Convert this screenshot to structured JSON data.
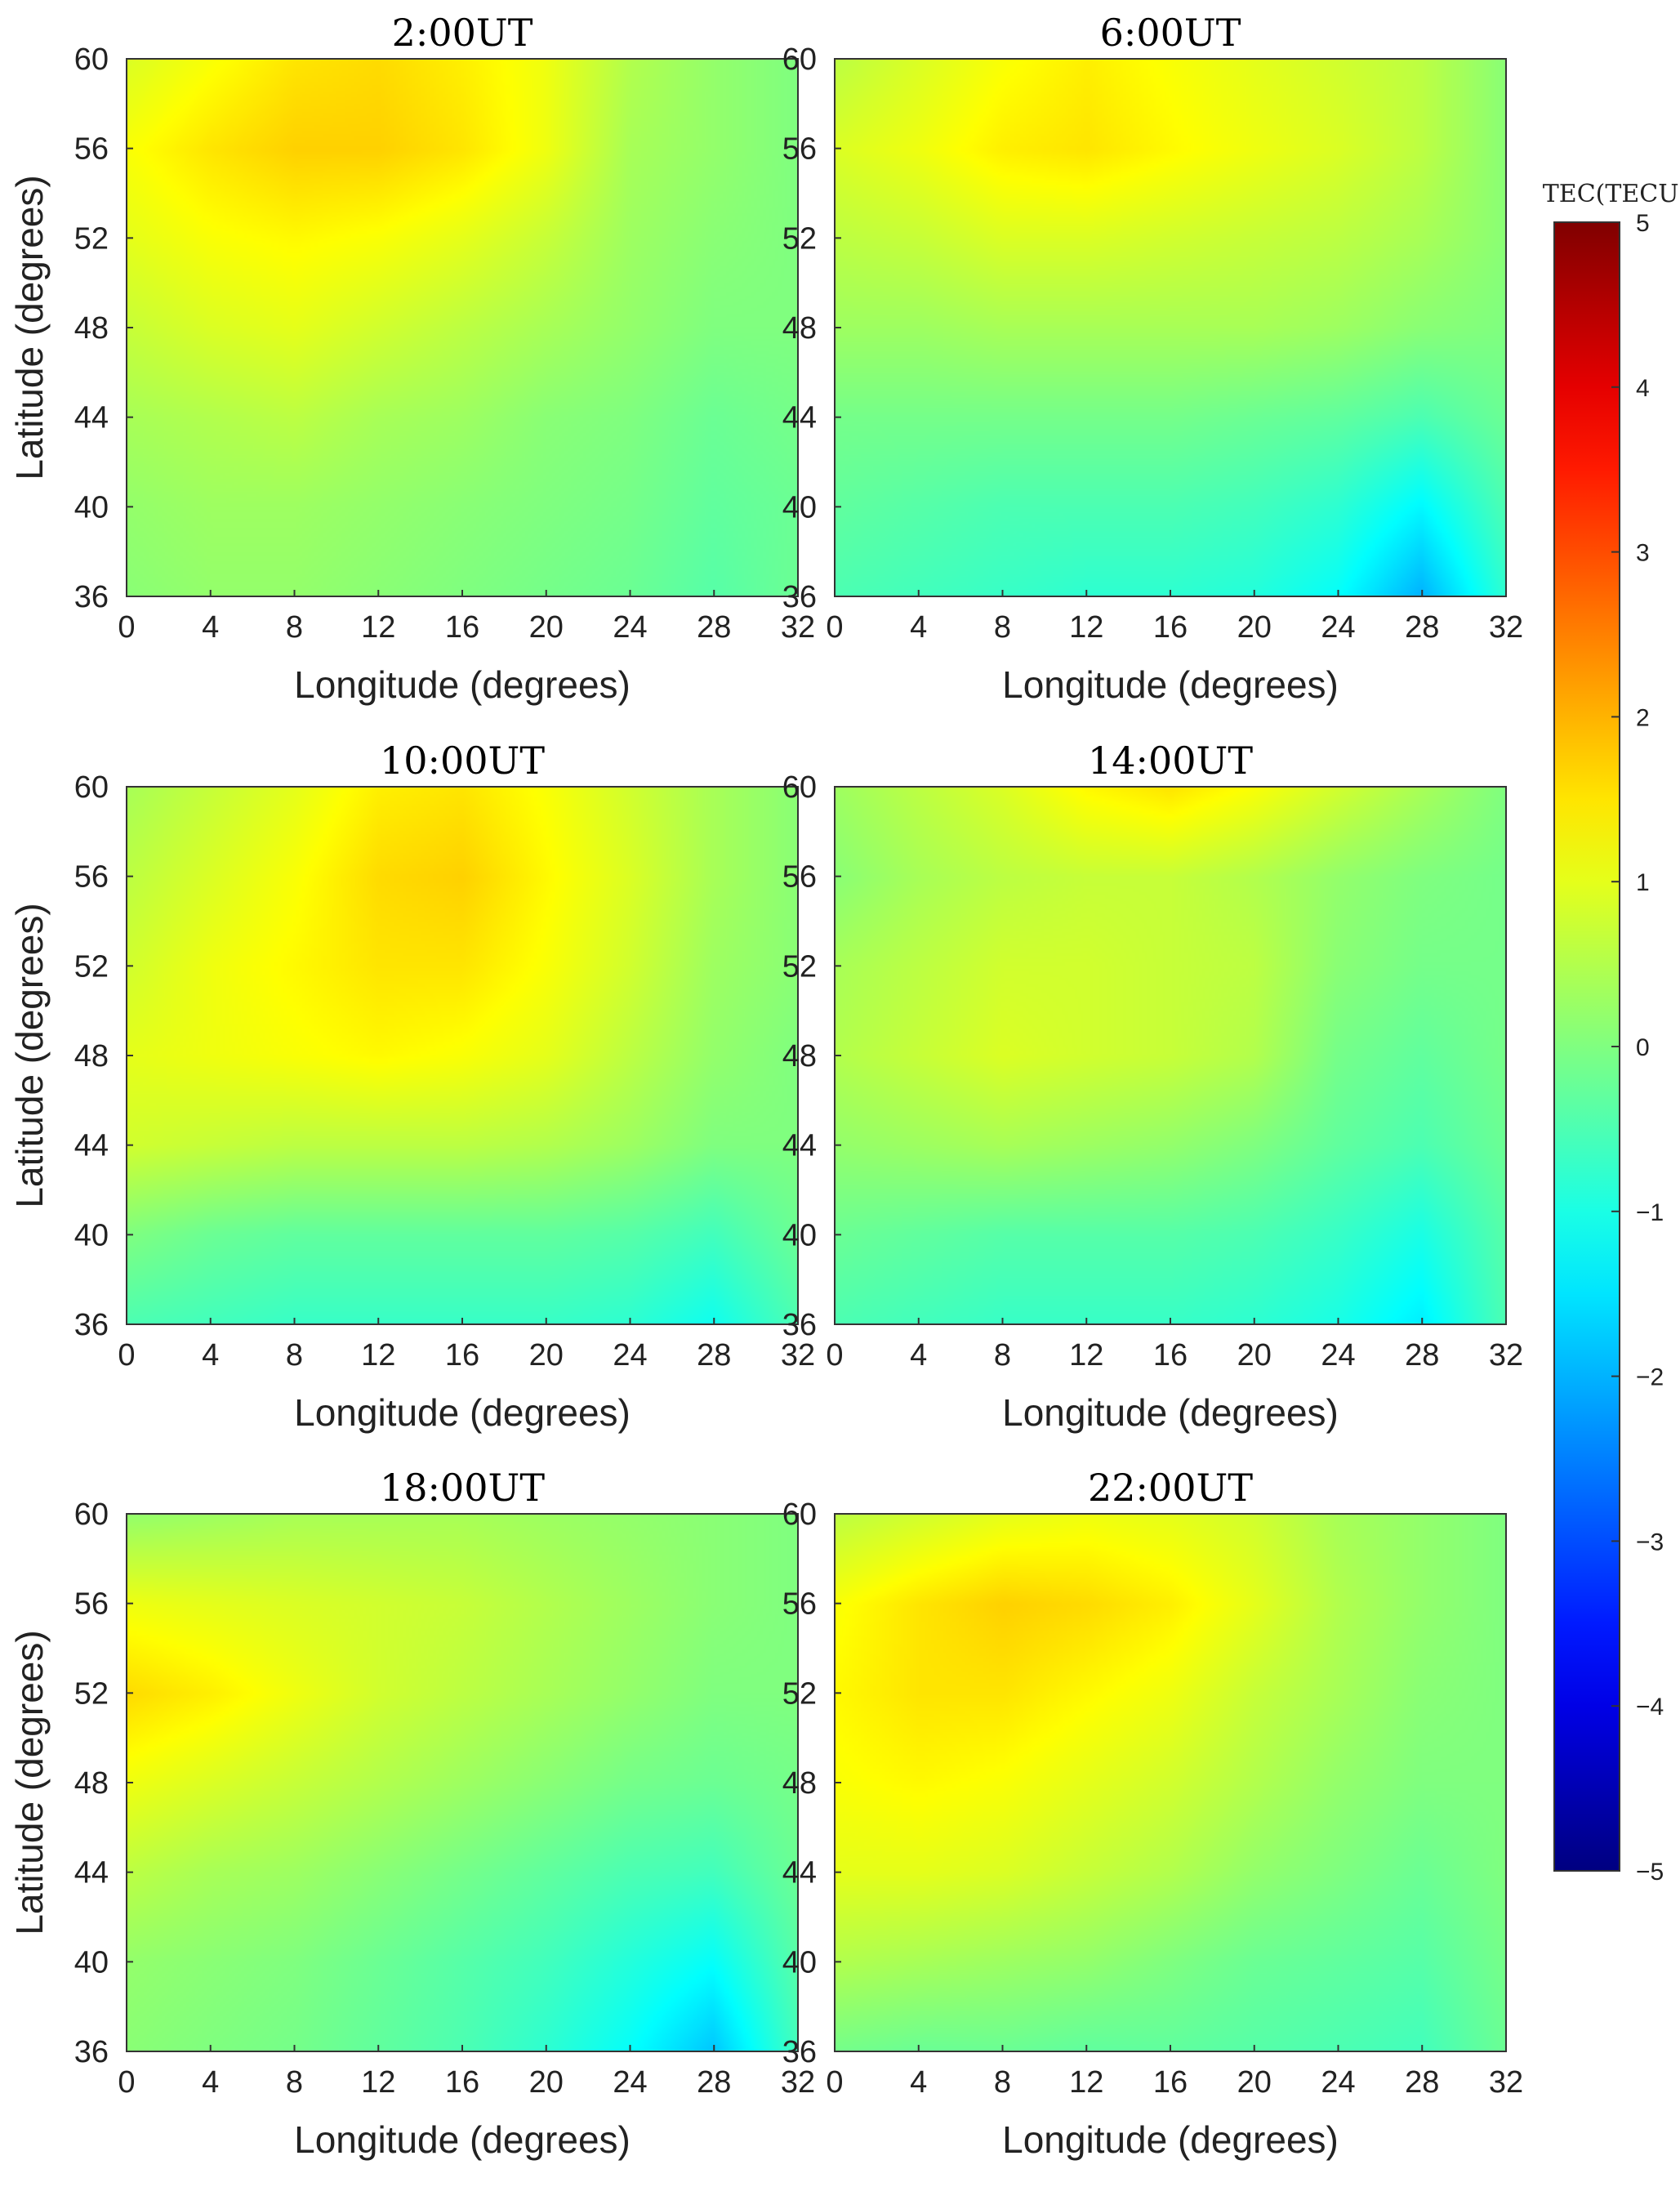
{
  "chart_data": {
    "type": "heatmap",
    "colorbar": {
      "title": "TEC(TECU)",
      "range": [
        -5,
        5
      ],
      "ticks": [
        "5",
        "4",
        "3",
        "2",
        "1",
        "0",
        "−1",
        "−2",
        "−3",
        "−4",
        "−5"
      ],
      "colormap": "jet"
    },
    "xlabel": "Longitude (degrees)",
    "ylabel": "Latitude (degrees)",
    "xlim": [
      0,
      32
    ],
    "ylim": [
      36,
      60
    ],
    "xticks": [
      "0",
      "4",
      "8",
      "12",
      "16",
      "20",
      "24",
      "28",
      "32"
    ],
    "yticks": [
      "36",
      "40",
      "44",
      "48",
      "52",
      "56",
      "60"
    ],
    "panels": [
      {
        "title": "2:00UT",
        "grid": [
          [
            0.1,
            0.2,
            0.2,
            0.1,
            0.0,
            -0.1,
            -0.2,
            -0.4,
            -0.2
          ],
          [
            0.2,
            0.3,
            0.3,
            0.2,
            0.1,
            0.0,
            -0.1,
            -0.3,
            -0.2
          ],
          [
            0.4,
            0.5,
            0.6,
            0.4,
            0.3,
            0.1,
            0.0,
            -0.2,
            -0.1
          ],
          [
            0.7,
            0.9,
            1.0,
            0.8,
            0.6,
            0.4,
            0.2,
            0.0,
            0.0
          ],
          [
            1.0,
            1.2,
            1.3,
            1.2,
            1.0,
            0.7,
            0.3,
            0.1,
            0.0
          ],
          [
            1.2,
            1.5,
            1.7,
            1.7,
            1.5,
            1.1,
            0.4,
            0.2,
            0.0
          ],
          [
            0.9,
            1.2,
            1.5,
            1.6,
            1.4,
            1.1,
            0.5,
            0.2,
            0.0
          ]
        ]
      },
      {
        "title": "6:00UT",
        "grid": [
          [
            -0.5,
            -0.6,
            -0.7,
            -0.8,
            -0.8,
            -0.9,
            -1.2,
            -2.0,
            -0.8
          ],
          [
            -0.3,
            -0.4,
            -0.5,
            -0.5,
            -0.5,
            -0.6,
            -0.8,
            -1.3,
            -0.5
          ],
          [
            -0.1,
            -0.1,
            -0.1,
            -0.1,
            -0.1,
            -0.2,
            -0.3,
            -0.5,
            -0.2
          ],
          [
            0.3,
            0.3,
            0.4,
            0.4,
            0.4,
            0.4,
            0.3,
            0.1,
            0.0
          ],
          [
            0.6,
            0.7,
            0.9,
            0.9,
            0.8,
            0.7,
            0.6,
            0.4,
            0.1
          ],
          [
            0.9,
            1.1,
            1.4,
            1.5,
            1.3,
            1.1,
            0.9,
            0.6,
            0.1
          ],
          [
            0.6,
            0.9,
            1.2,
            1.4,
            1.2,
            1.0,
            0.8,
            0.6,
            0.1
          ]
        ]
      },
      {
        "title": "10:00UT",
        "grid": [
          [
            -0.5,
            -0.6,
            -0.7,
            -0.7,
            -0.7,
            -0.7,
            -0.8,
            -1.1,
            -0.5
          ],
          [
            0.0,
            -0.2,
            -0.3,
            -0.3,
            -0.3,
            -0.3,
            -0.4,
            -0.6,
            -0.2
          ],
          [
            0.8,
            0.7,
            0.6,
            0.6,
            0.6,
            0.5,
            0.3,
            0.0,
            0.0
          ],
          [
            1.0,
            1.1,
            1.2,
            1.3,
            1.2,
            1.0,
            0.6,
            0.2,
            0.0
          ],
          [
            0.8,
            1.1,
            1.3,
            1.5,
            1.5,
            1.2,
            0.8,
            0.3,
            0.1
          ],
          [
            0.6,
            0.9,
            1.2,
            1.6,
            1.7,
            1.3,
            0.9,
            0.4,
            0.1
          ],
          [
            0.4,
            0.7,
            1.0,
            1.4,
            1.5,
            1.2,
            0.8,
            0.4,
            0.1
          ]
        ]
      },
      {
        "title": "14:00UT",
        "grid": [
          [
            -0.5,
            -0.6,
            -0.7,
            -0.7,
            -0.7,
            -0.8,
            -1.0,
            -1.4,
            -0.5
          ],
          [
            -0.2,
            -0.3,
            -0.4,
            -0.4,
            -0.4,
            -0.5,
            -0.7,
            -1.0,
            -0.4
          ],
          [
            0.2,
            0.3,
            0.4,
            0.3,
            0.2,
            0.0,
            -0.3,
            -0.5,
            -0.2
          ],
          [
            0.5,
            0.7,
            0.9,
            0.8,
            0.7,
            0.5,
            -0.1,
            -0.3,
            -0.1
          ],
          [
            0.4,
            0.6,
            0.8,
            0.8,
            0.7,
            0.6,
            0.1,
            -0.1,
            -0.1
          ],
          [
            0.1,
            0.4,
            0.6,
            0.7,
            0.7,
            0.5,
            0.2,
            0.0,
            -0.1
          ],
          [
            0.3,
            0.6,
            0.9,
            1.3,
            1.5,
            1.2,
            0.8,
            0.4,
            0.0
          ]
        ]
      },
      {
        "title": "18:00UT",
        "grid": [
          [
            0.1,
            0.0,
            -0.1,
            -0.3,
            -0.5,
            -0.8,
            -1.2,
            -1.8,
            -0.6
          ],
          [
            0.2,
            0.1,
            0.0,
            -0.2,
            -0.4,
            -0.6,
            -0.9,
            -1.2,
            -0.4
          ],
          [
            0.6,
            0.4,
            0.3,
            0.1,
            -0.1,
            -0.3,
            -0.5,
            -0.6,
            -0.2
          ],
          [
            1.1,
            0.9,
            0.7,
            0.5,
            0.3,
            0.1,
            -0.1,
            -0.2,
            -0.1
          ],
          [
            1.6,
            1.4,
            1.1,
            0.8,
            0.6,
            0.4,
            0.2,
            0.0,
            0.0
          ],
          [
            1.1,
            1.0,
            0.9,
            0.8,
            0.7,
            0.5,
            0.3,
            0.1,
            0.0
          ],
          [
            0.2,
            0.3,
            0.4,
            0.4,
            0.4,
            0.3,
            0.2,
            0.1,
            0.0
          ]
        ]
      },
      {
        "title": "22:00UT",
        "grid": [
          [
            -0.1,
            -0.2,
            -0.2,
            -0.3,
            -0.3,
            -0.4,
            -0.5,
            -0.6,
            -0.2
          ],
          [
            0.5,
            0.4,
            0.3,
            0.2,
            0.0,
            -0.2,
            -0.3,
            -0.4,
            -0.1
          ],
          [
            1.0,
            1.0,
            0.9,
            0.7,
            0.5,
            0.2,
            0.0,
            -0.2,
            0.0
          ],
          [
            1.2,
            1.3,
            1.2,
            1.0,
            0.8,
            0.5,
            0.2,
            0.0,
            0.0
          ],
          [
            1.3,
            1.5,
            1.5,
            1.3,
            1.1,
            0.7,
            0.4,
            0.1,
            0.0
          ],
          [
            1.2,
            1.5,
            1.7,
            1.6,
            1.4,
            1.0,
            0.5,
            0.2,
            0.0
          ],
          [
            0.6,
            0.8,
            1.0,
            1.1,
            1.0,
            0.8,
            0.4,
            0.2,
            0.0
          ]
        ]
      }
    ]
  }
}
